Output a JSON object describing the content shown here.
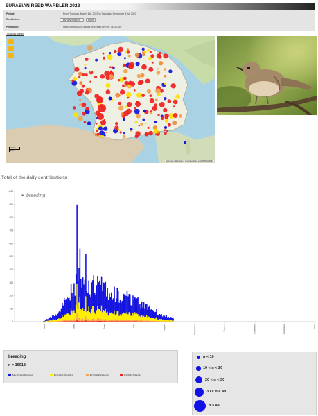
{
  "header": {
    "title": "EURASIAN REED WARBLER 2022"
  },
  "info": {
    "period_label": "Period:",
    "period_value": "From Tuesday, March 1st, 2022 to Saturday, December 31st, 2022",
    "restriction_label": "Restriction:",
    "buttons": [
      "My observations",
      "None"
    ],
    "permalink_label": "Permalink:",
    "permalink_value": "https://www.faune-france.org/index.php?m_id=20160"
  },
  "display_link": "[ Display table]",
  "map": {
    "scale_label": "100 km\n50 mi",
    "attribution": "Biolovision, Map data © OpenStreetMap & ALTIMATHURBA",
    "controls": [
      "list-icon",
      "layers-icon",
      "pin-icon"
    ]
  },
  "photo": {
    "subject": "Eurasian reed warbler perched on a branch"
  },
  "chart_title": "Total of the daily contributions",
  "chart_data": {
    "type": "bar",
    "title": "",
    "legend": [
      "breeding"
    ],
    "ylim": [
      0,
      1000
    ],
    "yticks": [
      "0",
      "100",
      "200",
      "300",
      "400",
      "500",
      "600",
      "700",
      "800",
      "900",
      "1,000"
    ],
    "xticks": [
      "April",
      "May",
      "June",
      "July",
      "August",
      "September",
      "October",
      "November",
      "December",
      "2023"
    ],
    "series": [
      {
        "name": "No known breeder",
        "color": "#1414e0"
      },
      {
        "name": "Possible breeder",
        "color": "#ffee00"
      },
      {
        "name": "Probable breeder",
        "color": "#f7a34d"
      },
      {
        "name": "Certain breeder",
        "color": "#ee2222"
      }
    ],
    "approx_peak": {
      "date": "early May",
      "value": 900
    }
  },
  "legend": {
    "title": "breeding",
    "count": "n = 16018",
    "items": [
      {
        "label": "No known breeder",
        "color": "#1414e0"
      },
      {
        "label": "Possible breeder",
        "color": "#ffee00"
      },
      {
        "label": "Probable breeder",
        "color": "#f7a34d"
      },
      {
        "label": "Certain breeder",
        "color": "#ee2222"
      }
    ]
  },
  "size_legend": {
    "rows": [
      {
        "label": "n < 10"
      },
      {
        "label": "10 < n < 20"
      },
      {
        "label": "20 < n < 30"
      },
      {
        "label": "30 < n < 48"
      },
      {
        "label": "n > 48"
      }
    ]
  }
}
